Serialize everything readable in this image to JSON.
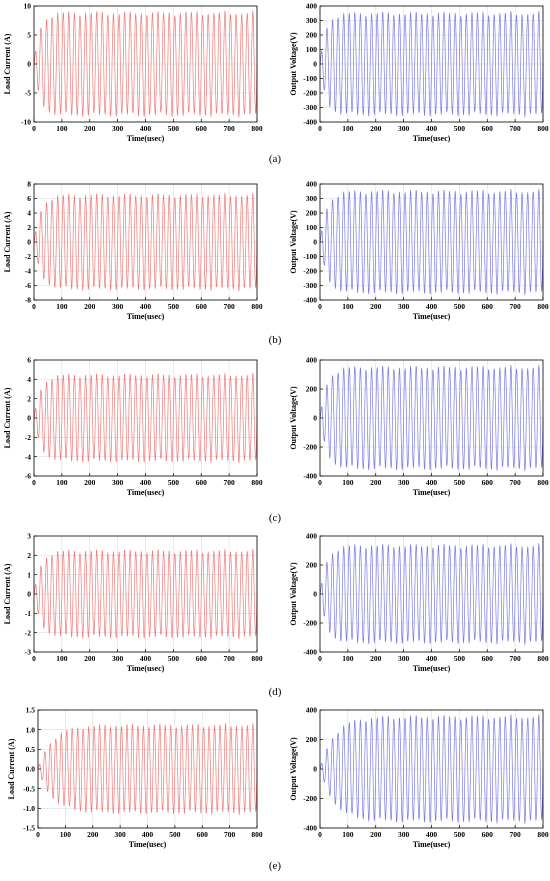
{
  "chart_data": [
    {
      "type": "line",
      "panel": "(a)",
      "title": "",
      "xlabel": "Time(usec)",
      "ylabel": "Load Current (A)",
      "xlim": [
        0,
        800
      ],
      "ylim": [
        -10,
        10
      ],
      "x_ticks": [
        0,
        100,
        200,
        300,
        400,
        500,
        600,
        700,
        800
      ],
      "y_ticks": [
        -10,
        -5,
        0,
        5,
        10
      ],
      "grid": true,
      "series": [
        {
          "color": "#f07a7a",
          "cycles": 40,
          "amplitude": 8.7,
          "rise_time": 60
        }
      ]
    },
    {
      "type": "line",
      "panel": "(a)",
      "title": "",
      "xlabel": "Time(usec)",
      "ylabel": "Output Voltage(V)",
      "xlim": [
        0,
        800
      ],
      "ylim": [
        -400,
        400
      ],
      "x_ticks": [
        0,
        100,
        200,
        300,
        400,
        500,
        600,
        700,
        800
      ],
      "y_ticks": [
        -400,
        -300,
        -200,
        -100,
        0,
        100,
        200,
        300,
        400
      ],
      "grid": true,
      "series": [
        {
          "color": "#7a7ae6",
          "cycles": 40,
          "amplitude": 345,
          "rise_time": 60
        }
      ]
    },
    {
      "type": "line",
      "panel": "(b)",
      "title": "",
      "xlabel": "Time(usec)",
      "ylabel": "Load Current (A)",
      "xlim": [
        0,
        800
      ],
      "ylim": [
        -8,
        8
      ],
      "x_ticks": [
        0,
        100,
        200,
        300,
        400,
        500,
        600,
        700,
        800
      ],
      "y_ticks": [
        -8,
        -6,
        -4,
        -2,
        0,
        2,
        4,
        6,
        8
      ],
      "grid": true,
      "series": [
        {
          "color": "#f07a7a",
          "cycles": 40,
          "amplitude": 6.4,
          "rise_time": 70
        }
      ]
    },
    {
      "type": "line",
      "panel": "(b)",
      "title": "",
      "xlabel": "Time(usec)",
      "ylabel": "Output Voltage(V)",
      "xlim": [
        0,
        800
      ],
      "ylim": [
        -400,
        400
      ],
      "x_ticks": [
        0,
        100,
        200,
        300,
        400,
        500,
        600,
        700,
        800
      ],
      "y_ticks": [
        -400,
        -300,
        -200,
        -100,
        0,
        100,
        200,
        300,
        400
      ],
      "grid": true,
      "series": [
        {
          "color": "#7a7ae6",
          "cycles": 40,
          "amplitude": 345,
          "rise_time": 70
        }
      ]
    },
    {
      "type": "line",
      "panel": "(c)",
      "title": "",
      "xlabel": "Time(usec)",
      "ylabel": "Load Current (A)",
      "xlim": [
        0,
        800
      ],
      "ylim": [
        -6,
        6
      ],
      "x_ticks": [
        0,
        100,
        200,
        300,
        400,
        500,
        600,
        700,
        800
      ],
      "y_ticks": [
        -6,
        -4,
        -2,
        0,
        2,
        4,
        6
      ],
      "grid": true,
      "series": [
        {
          "color": "#f07a7a",
          "cycles": 40,
          "amplitude": 4.4,
          "rise_time": 70
        }
      ]
    },
    {
      "type": "line",
      "panel": "(c)",
      "title": "",
      "xlabel": "Time(usec)",
      "ylabel": "Output Voltage(V)",
      "xlim": [
        0,
        800
      ],
      "ylim": [
        -400,
        400
      ],
      "x_ticks": [
        0,
        100,
        200,
        300,
        400,
        500,
        600,
        700,
        800
      ],
      "y_ticks": [
        -400,
        -200,
        0,
        200,
        400
      ],
      "grid": true,
      "series": [
        {
          "color": "#7a7ae6",
          "cycles": 40,
          "amplitude": 345,
          "rise_time": 70
        }
      ]
    },
    {
      "type": "line",
      "panel": "(d)",
      "title": "",
      "xlabel": "Time(usec)",
      "ylabel": "Load Current (A)",
      "xlim": [
        0,
        800
      ],
      "ylim": [
        -3,
        3
      ],
      "x_ticks": [
        0,
        100,
        200,
        300,
        400,
        500,
        600,
        700,
        800
      ],
      "y_ticks": [
        -3,
        -2,
        -1,
        0,
        1,
        2,
        3
      ],
      "grid": true,
      "series": [
        {
          "color": "#f07a7a",
          "cycles": 40,
          "amplitude": 2.2,
          "rise_time": 70
        }
      ]
    },
    {
      "type": "line",
      "panel": "(d)",
      "title": "",
      "xlabel": "Time(usec)",
      "ylabel": "Output Voltage(V)",
      "xlim": [
        0,
        800
      ],
      "ylim": [
        -400,
        400
      ],
      "x_ticks": [
        0,
        100,
        200,
        300,
        400,
        500,
        600,
        700,
        800
      ],
      "y_ticks": [
        -400,
        -200,
        0,
        200,
        400
      ],
      "grid": true,
      "series": [
        {
          "color": "#7a7ae6",
          "cycles": 40,
          "amplitude": 330,
          "rise_time": 70
        }
      ]
    },
    {
      "type": "line",
      "panel": "(e)",
      "title": "",
      "xlabel": "Time(usec)",
      "ylabel": "Load Current (A)",
      "xlim": [
        0,
        800
      ],
      "ylim": [
        -1.5,
        1.5
      ],
      "x_ticks": [
        0,
        100,
        200,
        300,
        400,
        500,
        600,
        700,
        800
      ],
      "y_ticks": [
        -1.5,
        -1.0,
        -0.5,
        0.0,
        0.5,
        1.0,
        1.5
      ],
      "y_tick_labels": [
        "-1.5",
        "-1.0",
        "-0.5",
        "0.0",
        "0.5",
        "1.0",
        "1.5"
      ],
      "grid": true,
      "series": [
        {
          "color": "#f07a7a",
          "cycles": 40,
          "amplitude": 1.1,
          "rise_time": 150
        }
      ]
    },
    {
      "type": "line",
      "panel": "(e)",
      "title": "",
      "xlabel": "Time(usec)",
      "ylabel": "Output Voltage(V)",
      "xlim": [
        0,
        800
      ],
      "ylim": [
        -400,
        400
      ],
      "x_ticks": [
        0,
        100,
        200,
        300,
        400,
        500,
        600,
        700,
        800
      ],
      "y_ticks": [
        -400,
        -200,
        0,
        200,
        400
      ],
      "grid": true,
      "series": [
        {
          "color": "#7a7ae6",
          "cycles": 40,
          "amplitude": 350,
          "rise_time": 150
        }
      ]
    }
  ],
  "panel_labels": [
    "(a)",
    "(b)",
    "(c)",
    "(d)",
    "(e)"
  ]
}
